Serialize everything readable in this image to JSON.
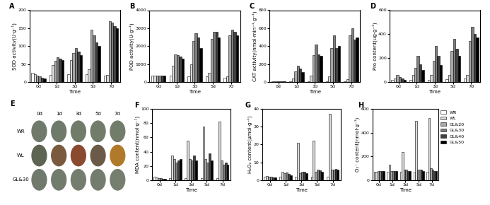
{
  "chart_data": [
    {
      "type": "bar",
      "title": "A",
      "x_label": "Time",
      "y_label": "SOD activity(U·g⁻¹)",
      "categories": [
        "0d",
        "1d",
        "3d",
        "5d",
        "7d"
      ],
      "ylim": [
        0,
        200
      ],
      "yticks": [
        0,
        50,
        100,
        150,
        200
      ],
      "series": [
        {
          "name": "WR",
          "color": "#ffffff",
          "values": [
            25,
            20,
            22,
            22,
            18
          ]
        },
        {
          "name": "WL",
          "color": "#d9d9d9",
          "values": [
            22,
            48,
            62,
            35,
            20
          ]
        },
        {
          "name": "GL&20",
          "color": "#a6a6a6",
          "values": [
            18,
            60,
            80,
            145,
            170
          ]
        },
        {
          "name": "GL&30",
          "color": "#7f7f7f",
          "values": [
            15,
            68,
            95,
            130,
            165
          ]
        },
        {
          "name": "GL&40",
          "color": "#404040",
          "values": [
            12,
            65,
            85,
            110,
            155
          ]
        },
        {
          "name": "GL&50",
          "color": "#000000",
          "values": [
            10,
            62,
            75,
            100,
            150
          ]
        }
      ]
    },
    {
      "type": "bar",
      "title": "B",
      "x_label": "Time",
      "y_label": "POD activity(U·g⁻¹)",
      "categories": [
        "0d",
        "1d",
        "3d",
        "5d",
        "7d"
      ],
      "ylim": [
        0,
        4000
      ],
      "yticks": [
        0,
        1000,
        2000,
        3000,
        4000
      ],
      "series": [
        {
          "name": "WR",
          "color": "#ffffff",
          "values": [
            350,
            350,
            300,
            300,
            250
          ]
        },
        {
          "name": "WL",
          "color": "#d9d9d9",
          "values": [
            350,
            900,
            1000,
            500,
            300
          ]
        },
        {
          "name": "GL&20",
          "color": "#a6a6a6",
          "values": [
            350,
            1550,
            2300,
            2400,
            2600
          ]
        },
        {
          "name": "GL&30",
          "color": "#7f7f7f",
          "values": [
            350,
            1500,
            2700,
            2800,
            2900
          ]
        },
        {
          "name": "GL&40",
          "color": "#404040",
          "values": [
            350,
            1400,
            2500,
            2800,
            2800
          ]
        },
        {
          "name": "GL&50",
          "color": "#000000",
          "values": [
            350,
            1300,
            1900,
            2500,
            2600
          ]
        }
      ]
    },
    {
      "type": "bar",
      "title": "C",
      "x_label": "Time",
      "y_label": "CAT activity(nmol·min⁻¹·g⁻¹)",
      "categories": [
        "0d",
        "1d",
        "3d",
        "5d",
        "7d"
      ],
      "ylim": [
        0,
        800
      ],
      "yticks": [
        0,
        200,
        400,
        600,
        800
      ],
      "series": [
        {
          "name": "WR",
          "color": "#ffffff",
          "values": [
            5,
            10,
            10,
            10,
            10
          ]
        },
        {
          "name": "WL",
          "color": "#d9d9d9",
          "values": [
            5,
            40,
            70,
            60,
            30
          ]
        },
        {
          "name": "GL&20",
          "color": "#a6a6a6",
          "values": [
            5,
            120,
            300,
            380,
            520
          ]
        },
        {
          "name": "GL&30",
          "color": "#7f7f7f",
          "values": [
            5,
            180,
            420,
            520,
            600
          ]
        },
        {
          "name": "GL&40",
          "color": "#404040",
          "values": [
            5,
            150,
            310,
            380,
            470
          ]
        },
        {
          "name": "GL&50",
          "color": "#000000",
          "values": [
            5,
            110,
            290,
            400,
            500
          ]
        }
      ]
    },
    {
      "type": "bar",
      "title": "D",
      "x_label": "Time",
      "y_label": "Pro content(ug·g⁻¹)",
      "categories": [
        "0d",
        "1d",
        "3d",
        "5d",
        "7d"
      ],
      "ylim": [
        0,
        600
      ],
      "yticks": [
        0,
        200,
        400,
        600
      ],
      "series": [
        {
          "name": "WR",
          "color": "#ffffff",
          "values": [
            20,
            20,
            20,
            25,
            30
          ]
        },
        {
          "name": "WL",
          "color": "#d9d9d9",
          "values": [
            30,
            60,
            60,
            60,
            60
          ]
        },
        {
          "name": "GL&20",
          "color": "#a6a6a6",
          "values": [
            60,
            120,
            180,
            260,
            340
          ]
        },
        {
          "name": "GL&30",
          "color": "#7f7f7f",
          "values": [
            40,
            220,
            300,
            360,
            460
          ]
        },
        {
          "name": "GL&40",
          "color": "#404040",
          "values": [
            30,
            150,
            220,
            280,
            400
          ]
        },
        {
          "name": "GL&50",
          "color": "#000000",
          "values": [
            20,
            100,
            140,
            220,
            370
          ]
        }
      ]
    },
    {
      "type": "bar",
      "title": "F",
      "x_label": "Time",
      "y_label": "MDA content(nmol·g⁻¹)",
      "categories": [
        "0d",
        "1d",
        "3d",
        "5d",
        "7d"
      ],
      "ylim": [
        0,
        100
      ],
      "yticks": [
        0,
        20,
        40,
        60,
        80,
        100
      ],
      "series": [
        {
          "name": "WR",
          "color": "#ffffff",
          "values": [
            5,
            3,
            3,
            3,
            3
          ]
        },
        {
          "name": "WL",
          "color": "#d9d9d9",
          "values": [
            4,
            35,
            55,
            75,
            82
          ]
        },
        {
          "name": "GL&20",
          "color": "#a6a6a6",
          "values": [
            3,
            30,
            30,
            30,
            28
          ]
        },
        {
          "name": "GL&30",
          "color": "#7f7f7f",
          "values": [
            3,
            25,
            28,
            25,
            22
          ]
        },
        {
          "name": "GL&40",
          "color": "#404040",
          "values": [
            2,
            28,
            35,
            38,
            25
          ]
        },
        {
          "name": "GL&50",
          "color": "#000000",
          "values": [
            2,
            30,
            28,
            28,
            22
          ]
        }
      ]
    },
    {
      "type": "bar",
      "title": "G",
      "x_label": "Time",
      "y_label": "H₂O₂ content(μmol·g⁻¹)",
      "categories": [
        "0d",
        "1d",
        "3d",
        "5d",
        "7d"
      ],
      "ylim": [
        0,
        40
      ],
      "yticks": [
        0,
        10,
        20,
        30,
        40
      ],
      "series": [
        {
          "name": "WR",
          "color": "#ffffff",
          "values": [
            2,
            2,
            2,
            2,
            2
          ]
        },
        {
          "name": "WL",
          "color": "#d9d9d9",
          "values": [
            2.5,
            5,
            21,
            22,
            37
          ]
        },
        {
          "name": "GL&20",
          "color": "#a6a6a6",
          "values": [
            2,
            4,
            4,
            5,
            6
          ]
        },
        {
          "name": "GL&30",
          "color": "#7f7f7f",
          "values": [
            2,
            4.5,
            5,
            6,
            6
          ]
        },
        {
          "name": "GL&40",
          "color": "#404040",
          "values": [
            1.5,
            3.5,
            5,
            5.5,
            6.5
          ]
        },
        {
          "name": "GL&50",
          "color": "#000000",
          "values": [
            1.5,
            3,
            4,
            5,
            6
          ]
        }
      ]
    },
    {
      "type": "bar",
      "title": "H",
      "x_label": "Time",
      "y_label": "O₂⁻ content(nmol·g⁻¹)",
      "categories": [
        "0d",
        "1d",
        "3d",
        "5d",
        "7d"
      ],
      "ylim": [
        0,
        600
      ],
      "yticks": [
        0,
        200,
        400,
        600
      ],
      "legend": "upper right",
      "series": [
        {
          "name": "WR",
          "color": "#ffffff",
          "values": [
            70,
            70,
            70,
            70,
            70
          ]
        },
        {
          "name": "WL",
          "color": "#d9d9d9",
          "values": [
            70,
            130,
            240,
            500,
            520
          ]
        },
        {
          "name": "GL&20",
          "color": "#a6a6a6",
          "values": [
            80,
            80,
            90,
            90,
            100
          ]
        },
        {
          "name": "GL&30",
          "color": "#7f7f7f",
          "values": [
            80,
            80,
            90,
            90,
            90
          ]
        },
        {
          "name": "GL&40",
          "color": "#404040",
          "values": [
            80,
            80,
            80,
            90,
            80
          ]
        },
        {
          "name": "GL&50",
          "color": "#000000",
          "values": [
            80,
            80,
            80,
            80,
            80
          ]
        }
      ]
    }
  ],
  "photo_panel": {
    "title": "E",
    "columns": [
      "0d",
      "1d",
      "3d",
      "5d",
      "7d"
    ],
    "rows": [
      "WR",
      "WL",
      "GL&30"
    ]
  }
}
